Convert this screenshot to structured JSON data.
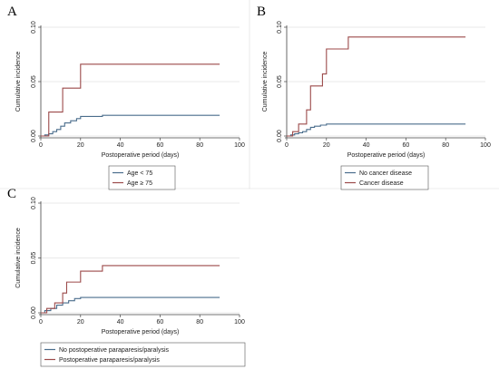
{
  "colors": {
    "series1": "#4a6d8c",
    "series2": "#9c4a4a",
    "axis": "#444444",
    "grid": "#e3e3e3"
  },
  "chart_data": [
    {
      "type": "line",
      "step": true,
      "panel_label": "A",
      "xlabel": "Postoperative period (days)",
      "ylabel": "Cumulative incidence",
      "xlim": [
        0,
        100
      ],
      "ylim": [
        0,
        0.1
      ],
      "xticks": [
        "0",
        "20",
        "40",
        "60",
        "80",
        "100"
      ],
      "yticks": [
        "0.00",
        "0.05",
        "0.10"
      ],
      "grid": true,
      "legend": "bottom",
      "series": [
        {
          "name": "Age < 75",
          "x": [
            0,
            2,
            4,
            6,
            8,
            10,
            12,
            15,
            18,
            20,
            31,
            90
          ],
          "y": [
            0,
            0.001,
            0.002,
            0.004,
            0.006,
            0.009,
            0.012,
            0.014,
            0.016,
            0.018,
            0.019,
            0.019
          ]
        },
        {
          "name": "Age ≥ 75",
          "x": [
            0,
            4,
            11,
            20,
            90
          ],
          "y": [
            0,
            0.022,
            0.044,
            0.066,
            0.066
          ]
        }
      ]
    },
    {
      "type": "line",
      "step": true,
      "panel_label": "B",
      "xlabel": "Postoperative period (days)",
      "ylabel": "Cumulative incidence",
      "xlim": [
        0,
        100
      ],
      "ylim": [
        0,
        0.1
      ],
      "xticks": [
        "0",
        "20",
        "40",
        "60",
        "80",
        "100"
      ],
      "yticks": [
        "0.00",
        "0.05",
        "0.10"
      ],
      "grid": true,
      "legend": "bottom",
      "series": [
        {
          "name": "No cancer disease",
          "x": [
            0,
            2,
            4,
            6,
            8,
            10,
            12,
            14,
            17,
            20,
            90
          ],
          "y": [
            0,
            0.001,
            0.002,
            0.003,
            0.004,
            0.006,
            0.008,
            0.009,
            0.01,
            0.011,
            0.011
          ]
        },
        {
          "name": "Cancer disease",
          "x": [
            0,
            3,
            6,
            10,
            12,
            18,
            20,
            31,
            90
          ],
          "y": [
            0,
            0.004,
            0.011,
            0.024,
            0.046,
            0.057,
            0.08,
            0.091,
            0.091
          ]
        }
      ]
    },
    {
      "type": "line",
      "step": true,
      "panel_label": "C",
      "xlabel": "Postoperative period (days)",
      "ylabel": "Cumulative incidence",
      "xlim": [
        0,
        100
      ],
      "ylim": [
        0,
        0.1
      ],
      "xticks": [
        "0",
        "20",
        "40",
        "60",
        "80",
        "100"
      ],
      "yticks": [
        "0.00",
        "0.05",
        "0.10"
      ],
      "grid": true,
      "legend": "bottom",
      "series": [
        {
          "name": "No postoperative paraparesis/paralysis",
          "x": [
            0,
            2,
            5,
            8,
            11,
            14,
            17,
            20,
            90
          ],
          "y": [
            0,
            0.002,
            0.004,
            0.007,
            0.009,
            0.011,
            0.013,
            0.014,
            0.014
          ]
        },
        {
          "name": "Postoperative paraparesis/paralysis",
          "x": [
            0,
            3,
            7,
            11,
            13,
            20,
            31,
            90
          ],
          "y": [
            0,
            0.004,
            0.009,
            0.018,
            0.028,
            0.038,
            0.043,
            0.043
          ]
        }
      ]
    }
  ]
}
